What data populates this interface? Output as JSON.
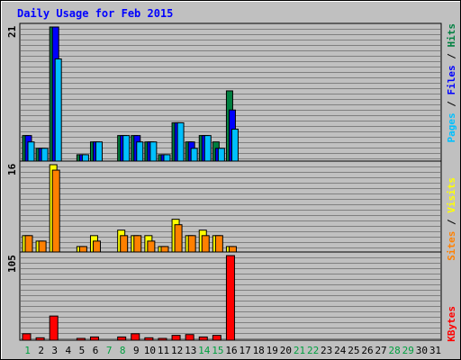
{
  "chart_data": {
    "type": "bar",
    "title": "Daily Usage for Feb 2015",
    "days": [
      "1",
      "2",
      "3",
      "4",
      "5",
      "6",
      "7",
      "8",
      "9",
      "10",
      "11",
      "12",
      "13",
      "14",
      "15",
      "16",
      "17",
      "18",
      "19",
      "20",
      "21",
      "22",
      "23",
      "24",
      "25",
      "26",
      "27",
      "28",
      "29",
      "30",
      "31"
    ],
    "weekend_days": [
      "1",
      "7",
      "8",
      "14",
      "15",
      "21",
      "22",
      "28",
      "29"
    ],
    "panels": [
      {
        "id": "hits-files-pages",
        "max_label": "21",
        "ylim": [
          0,
          21
        ],
        "series": [
          {
            "name": "Hits",
            "color": "#008040",
            "values": [
              4,
              2,
              21,
              0,
              1,
              3,
              0,
              4,
              4,
              3,
              1,
              6,
              3,
              4,
              3,
              11,
              0,
              0,
              0,
              0,
              0,
              0,
              0,
              0,
              0,
              0,
              0,
              0,
              0,
              0,
              0
            ]
          },
          {
            "name": "Files",
            "color": "#0000ff",
            "values": [
              4,
              2,
              21,
              0,
              1,
              3,
              0,
              4,
              4,
              3,
              1,
              6,
              3,
              4,
              2,
              8,
              0,
              0,
              0,
              0,
              0,
              0,
              0,
              0,
              0,
              0,
              0,
              0,
              0,
              0,
              0
            ]
          },
          {
            "name": "Pages",
            "color": "#00c0ff",
            "values": [
              3,
              2,
              16,
              0,
              1,
              3,
              0,
              4,
              3,
              3,
              1,
              6,
              2,
              4,
              2,
              5,
              0,
              0,
              0,
              0,
              0,
              0,
              0,
              0,
              0,
              0,
              0,
              0,
              0,
              0,
              0
            ]
          }
        ]
      },
      {
        "id": "visits-sites",
        "max_label": "16",
        "ylim": [
          0,
          16
        ],
        "series": [
          {
            "name": "Visits",
            "color": "#ffff00",
            "values": [
              3,
              2,
              16,
              0,
              1,
              3,
              0,
              4,
              3,
              3,
              1,
              6,
              3,
              4,
              3,
              1,
              0,
              0,
              0,
              0,
              0,
              0,
              0,
              0,
              0,
              0,
              0,
              0,
              0,
              0,
              0
            ]
          },
          {
            "name": "Sites",
            "color": "#ff8000",
            "values": [
              3,
              2,
              15,
              0,
              1,
              2,
              0,
              3,
              3,
              2,
              1,
              5,
              3,
              3,
              3,
              1,
              0,
              0,
              0,
              0,
              0,
              0,
              0,
              0,
              0,
              0,
              0,
              0,
              0,
              0,
              0
            ]
          }
        ]
      },
      {
        "id": "kbytes",
        "max_label": "105",
        "ylim": [
          0,
          105
        ],
        "series": [
          {
            "name": "KBytes",
            "color": "#ff0000",
            "values": [
              8,
              3,
              30,
              0,
              2,
              4,
              0,
              4,
              8,
              3,
              2,
              6,
              7,
              4,
              6,
              105,
              0,
              0,
              0,
              0,
              0,
              0,
              0,
              0,
              0,
              0,
              0,
              0,
              0,
              0,
              0
            ]
          }
        ]
      }
    ],
    "colors": {
      "background": "#c0c0c0",
      "plot": "#c0c0c0",
      "grid": "#808080",
      "title": "#0000ff",
      "weekday_label": "#000000",
      "weekend_label": "#00a040"
    }
  }
}
